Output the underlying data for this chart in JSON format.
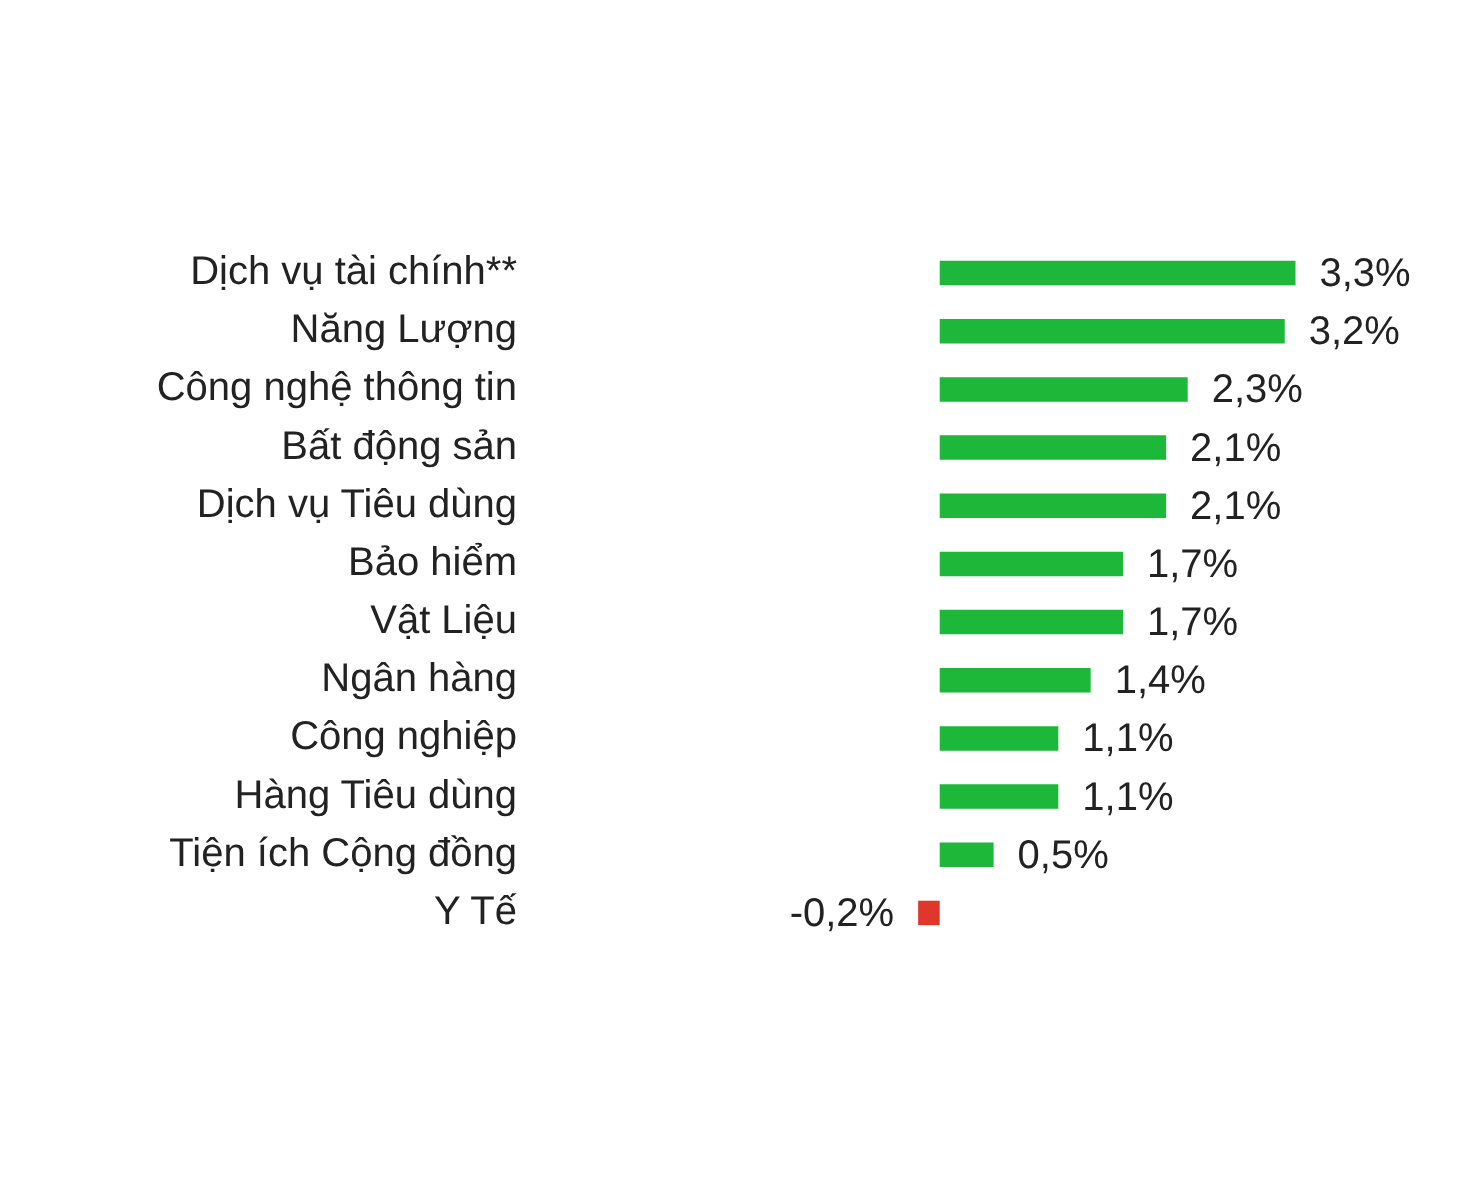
{
  "chart_data": {
    "type": "bar",
    "orientation": "horizontal",
    "categories": [
      "Dịch vụ tài chính**",
      "Năng Lượng",
      "Công nghệ thông tin",
      "Bất động sản",
      "Dịch vụ Tiêu dùng",
      "Bảo hiểm",
      "Vật Liệu",
      "Ngân hàng",
      "Công nghiệp",
      "Hàng Tiêu dùng",
      "Tiện ích Cộng đồng",
      "Y Tế"
    ],
    "values": [
      3.3,
      3.2,
      2.3,
      2.1,
      2.1,
      1.7,
      1.7,
      1.4,
      1.1,
      1.1,
      0.5,
      -0.2
    ],
    "colors": [
      "#1db83a",
      "#1db83a",
      "#1db83a",
      "#1db83a",
      "#1db83a",
      "#1db83a",
      "#1db83a",
      "#1db83a",
      "#1db83a",
      "#1db83a",
      "#1db83a",
      "#e0362c"
    ],
    "value_labels": [
      "3,3%",
      "3,2%",
      "2,3%",
      "2,1%",
      "2,1%",
      "1,7%",
      "1,7%",
      "1,4%",
      "1,1%",
      "1,1%",
      "0,5%",
      "-0,2%"
    ],
    "grid": false,
    "legend": false
  }
}
